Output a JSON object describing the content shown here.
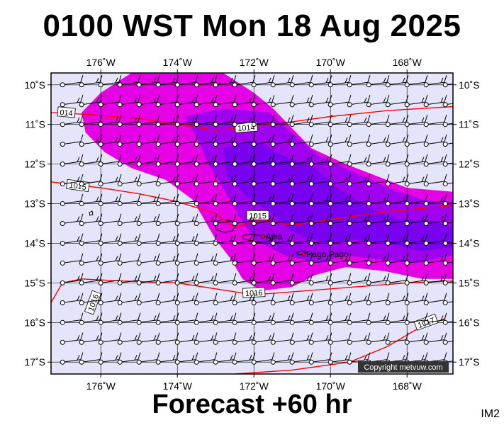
{
  "title": "0100 WST Mon 18 Aug 2025",
  "footer": "Forecast +60 hr",
  "image_code": "IM2",
  "copyright": "Copyright metvuw.com",
  "colors": {
    "background": "#e4e4fa",
    "rain_light": "#e600e6",
    "rain_medium": "#a000f0",
    "rain_heavy": "#7a00f0",
    "isobar": "#ff0000",
    "barb": "#000000"
  },
  "map_data": {
    "lon_range": [
      -177.3,
      -166.8
    ],
    "lat_range": [
      -17.3,
      -9.7
    ],
    "lon_ticks": [
      {
        "value": -176,
        "label": "176˚W"
      },
      {
        "value": -174,
        "label": "174˚W"
      },
      {
        "value": -172,
        "label": "172˚W"
      },
      {
        "value": -170,
        "label": "170˚W"
      },
      {
        "value": -168,
        "label": "168˚W"
      }
    ],
    "lat_ticks": [
      {
        "value": -10,
        "label": "10˚S"
      },
      {
        "value": -11,
        "label": "11˚S"
      },
      {
        "value": -12,
        "label": "12˚S"
      },
      {
        "value": -13,
        "label": "13˚S"
      },
      {
        "value": -14,
        "label": "14˚S"
      },
      {
        "value": -15,
        "label": "15˚S"
      },
      {
        "value": -16,
        "label": "16˚S"
      },
      {
        "value": -17,
        "label": "17˚S"
      }
    ],
    "places": [
      {
        "name": "Apia",
        "lon": -171.77,
        "lat": -13.83
      },
      {
        "name": "Pago Pago",
        "lon": -170.7,
        "lat": -14.28
      }
    ],
    "isobars": [
      {
        "label": "1014",
        "points": [
          [
            -177.3,
            -10.7
          ],
          [
            -176.3,
            -10.75
          ],
          [
            -175.0,
            -10.85
          ],
          [
            -173.0,
            -11.15
          ],
          [
            -171.5,
            -11.0
          ],
          [
            -170.0,
            -10.8
          ],
          [
            -168.5,
            -10.65
          ],
          [
            -166.8,
            -10.55
          ]
        ]
      },
      {
        "label": "1015",
        "points": [
          [
            -177.3,
            -12.45
          ],
          [
            -176.0,
            -12.6
          ],
          [
            -175.0,
            -12.75
          ],
          [
            -174.0,
            -12.95
          ],
          [
            -173.0,
            -13.25
          ],
          [
            -172.5,
            -13.6
          ],
          [
            -171.8,
            -13.4
          ],
          [
            -171.0,
            -13.55
          ],
          [
            -170.0,
            -13.4
          ],
          [
            -168.5,
            -13.2
          ],
          [
            -166.8,
            -13.05
          ]
        ]
      },
      {
        "label": "1016",
        "points": [
          [
            -177.3,
            -15.5
          ],
          [
            -177.0,
            -15.0
          ],
          [
            -176.5,
            -14.9
          ],
          [
            -175.5,
            -14.95
          ],
          [
            -174.0,
            -15.0
          ],
          [
            -172.0,
            -15.3
          ],
          [
            -170.0,
            -15.15
          ],
          [
            -168.0,
            -15.0
          ],
          [
            -166.8,
            -14.95
          ]
        ]
      },
      {
        "label": "1017",
        "points": [
          [
            -172.5,
            -17.3
          ],
          [
            -171.0,
            -17.2
          ],
          [
            -169.5,
            -17.0
          ],
          [
            -168.5,
            -16.6
          ],
          [
            -167.8,
            -16.2
          ],
          [
            -167.0,
            -15.9
          ]
        ]
      }
    ],
    "isobar_labels": [
      {
        "text": "014",
        "lon": -176.9,
        "lat": -10.7,
        "angle": 5
      },
      {
        "text": "1014",
        "lon": -172.2,
        "lat": -11.08,
        "angle": -4
      },
      {
        "text": "1015",
        "lon": -176.6,
        "lat": -12.55,
        "angle": 8
      },
      {
        "text": "1015",
        "lon": -171.9,
        "lat": -13.3,
        "angle": 0
      },
      {
        "text": "1016",
        "lon": -176.2,
        "lat": -15.5,
        "angle": -70
      },
      {
        "text": "1016",
        "lon": -172.0,
        "lat": -15.25,
        "angle": -3
      },
      {
        "text": "1017",
        "lon": -167.5,
        "lat": -16.0,
        "angle": -20
      }
    ],
    "barb_grid": {
      "lon_start": -177.0,
      "lon_step": 0.5,
      "lon_count": 21,
      "lat_start": -10.0,
      "lat_step": -0.5,
      "lat_count": 15
    },
    "rain_areas": {
      "light": [
        [
          [
            -175.2,
            -9.7
          ],
          [
            -172.8,
            -9.7
          ],
          [
            -172.0,
            -10.2
          ],
          [
            -171.5,
            -10.6
          ],
          [
            -170.9,
            -11.2
          ],
          [
            -170.5,
            -11.6
          ],
          [
            -169.6,
            -12.0
          ],
          [
            -168.8,
            -12.3
          ],
          [
            -168.0,
            -12.6
          ],
          [
            -166.8,
            -12.7
          ],
          [
            -166.8,
            -14.9
          ],
          [
            -167.6,
            -14.9
          ],
          [
            -168.6,
            -14.7
          ],
          [
            -169.6,
            -14.6
          ],
          [
            -170.4,
            -14.8
          ],
          [
            -171.0,
            -15.1
          ],
          [
            -171.8,
            -15.2
          ],
          [
            -172.3,
            -14.9
          ],
          [
            -172.6,
            -14.4
          ],
          [
            -173.0,
            -13.9
          ],
          [
            -173.3,
            -13.4
          ],
          [
            -173.6,
            -12.9
          ],
          [
            -174.3,
            -12.4
          ],
          [
            -175.2,
            -12.1
          ],
          [
            -175.9,
            -11.7
          ],
          [
            -176.4,
            -11.2
          ],
          [
            -176.5,
            -10.7
          ],
          [
            -176.0,
            -10.2
          ]
        ]
      ],
      "medium": [
        [
          [
            -173.8,
            -10.8
          ],
          [
            -172.8,
            -10.6
          ],
          [
            -171.6,
            -10.7
          ],
          [
            -170.9,
            -11.3
          ],
          [
            -170.3,
            -11.8
          ],
          [
            -169.4,
            -12.2
          ],
          [
            -168.5,
            -12.6
          ],
          [
            -167.6,
            -12.9
          ],
          [
            -166.8,
            -13.0
          ],
          [
            -166.8,
            -14.3
          ],
          [
            -167.8,
            -14.5
          ],
          [
            -168.8,
            -14.4
          ],
          [
            -169.6,
            -14.3
          ],
          [
            -170.3,
            -14.5
          ],
          [
            -171.2,
            -14.3
          ],
          [
            -172.0,
            -13.9
          ],
          [
            -172.4,
            -13.3
          ],
          [
            -172.8,
            -12.6
          ],
          [
            -173.2,
            -12.0
          ],
          [
            -173.4,
            -11.5
          ]
        ]
      ],
      "heavy": [
        [
          [
            -172.8,
            -11.6
          ],
          [
            -172.0,
            -11.4
          ],
          [
            -171.2,
            -11.8
          ],
          [
            -170.4,
            -12.1
          ],
          [
            -169.8,
            -12.6
          ],
          [
            -169.0,
            -13.1
          ],
          [
            -168.2,
            -13.4
          ],
          [
            -167.4,
            -13.4
          ],
          [
            -166.8,
            -13.6
          ],
          [
            -166.8,
            -14.1
          ],
          [
            -167.6,
            -14.2
          ],
          [
            -168.6,
            -14.0
          ],
          [
            -169.4,
            -13.9
          ],
          [
            -170.2,
            -14.0
          ],
          [
            -171.0,
            -13.7
          ],
          [
            -171.6,
            -13.2
          ],
          [
            -172.2,
            -12.8
          ],
          [
            -172.7,
            -12.3
          ]
        ]
      ]
    }
  }
}
